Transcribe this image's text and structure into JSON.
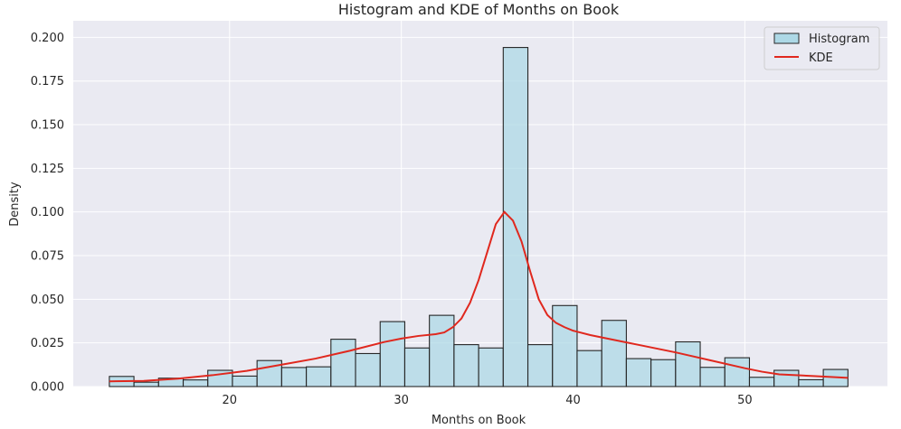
{
  "chart_data": {
    "type": "bar",
    "title": "Histogram and KDE of Months on Book",
    "xlabel": "Months on Book",
    "ylabel": "Density",
    "xlim": [
      10.9,
      58.3
    ],
    "ylim": [
      0,
      0.2095
    ],
    "xticks": [
      20,
      30,
      40,
      50
    ],
    "yticks": [
      0.0,
      0.025,
      0.05,
      0.075,
      0.1,
      0.125,
      0.15,
      0.175,
      0.2
    ],
    "ytick_labels": [
      "0.000",
      "0.025",
      "0.050",
      "0.075",
      "0.100",
      "0.125",
      "0.150",
      "0.175",
      "0.200"
    ],
    "grid": true,
    "legend_position": "top-right",
    "series": [
      {
        "name": "Histogram",
        "kind": "histogram",
        "color": "#add8e6",
        "bin_edges": [
          13.0,
          14.433,
          15.867,
          17.3,
          18.733,
          20.167,
          21.6,
          23.033,
          24.467,
          25.9,
          27.333,
          28.767,
          30.2,
          31.633,
          33.067,
          34.5,
          35.933,
          37.367,
          38.8,
          40.233,
          41.667,
          43.1,
          44.533,
          45.967,
          47.4,
          48.833,
          50.267,
          51.7,
          53.133,
          54.567,
          56.0
        ],
        "values": [
          0.0058,
          0.0025,
          0.0048,
          0.0038,
          0.0093,
          0.006,
          0.0149,
          0.0109,
          0.0113,
          0.0271,
          0.0189,
          0.0372,
          0.0221,
          0.0408,
          0.024,
          0.0221,
          0.1942,
          0.024,
          0.0464,
          0.0206,
          0.0379,
          0.016,
          0.0154,
          0.0256,
          0.011,
          0.0165,
          0.0053,
          0.0093,
          0.0039,
          0.0098
        ]
      },
      {
        "name": "KDE",
        "kind": "line",
        "color": "#e0281e",
        "x": [
          13,
          15,
          17,
          19,
          21,
          23,
          25,
          27,
          29,
          30,
          31,
          32,
          32.5,
          33,
          33.5,
          34,
          34.5,
          35,
          35.5,
          36,
          36.5,
          37,
          37.5,
          38,
          38.5,
          39,
          39.5,
          40,
          41,
          42,
          44,
          46,
          48,
          50,
          51,
          52,
          54,
          56
        ],
        "y": [
          0.003,
          0.0032,
          0.0045,
          0.0065,
          0.009,
          0.0125,
          0.016,
          0.0205,
          0.0255,
          0.0275,
          0.029,
          0.03,
          0.031,
          0.034,
          0.039,
          0.048,
          0.061,
          0.077,
          0.093,
          0.1,
          0.095,
          0.083,
          0.066,
          0.05,
          0.041,
          0.0365,
          0.034,
          0.032,
          0.0295,
          0.0275,
          0.0235,
          0.0195,
          0.015,
          0.0105,
          0.0085,
          0.007,
          0.006,
          0.005
        ]
      }
    ]
  }
}
